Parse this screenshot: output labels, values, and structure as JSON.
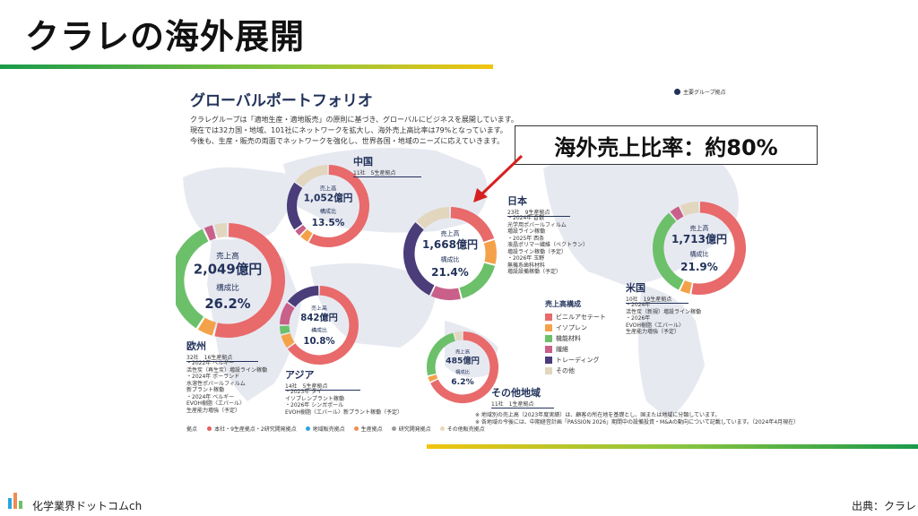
{
  "slide": {
    "title": "クラレの海外展開",
    "callout": "海外売上比率：約80%",
    "footer_brand": "化学業界ドットコムch",
    "footer_source": "出典：クラレ"
  },
  "panel": {
    "title": "グローバルポートフォリオ",
    "intro": [
      "クラレグループは「適地生産・適地販売」の原則に基づき、グローバルにビジネスを展開しています。",
      "現在では32カ国・地域、101社にネットワークを拡大し、海外売上高比率は79%となっています。",
      "今後も、生産・販売の両面でネットワークを強化し、世界各国・地域のニーズに応えていきます。"
    ],
    "hq_legend": "主要グループ拠点",
    "legend_title": "売上高構成",
    "key_prefix": "拠点",
    "key_items": [
      {
        "label": "本社・9生産拠点・2研究開発拠点",
        "color": "#e06060"
      },
      {
        "label": "地域販売拠点",
        "color": "#2aa6e0"
      },
      {
        "label": "生産拠点",
        "color": "#f08c50"
      },
      {
        "label": "研究開発拠点",
        "color": "#9a9a9a"
      },
      {
        "label": "その他販売拠点",
        "color": "#e8d8b8"
      }
    ],
    "footnotes": [
      "※ 地域別の売上高（2023年度実績）は、顧客の所在地を基礎とし、国または地域に分類しています。",
      "※ 各地域の今後には、中期経営計画「PASSION 2026」期間中の設備投資・M&Aの動向について記載しています。（2024年4月現在）"
    ]
  },
  "regions": {
    "china": {
      "name": "中国",
      "sub": "11社　5生産拠点",
      "label_sales": "売上高",
      "value_text": "1,052億円",
      "label_ratio": "構成比",
      "ratio_text": "13.5%"
    },
    "japan": {
      "name": "日本",
      "sub": "23社　9生産拠点",
      "label_sales": "売上高",
      "value_text": "1,668億円",
      "label_ratio": "構成比",
      "ratio_text": "21.4%",
      "notes": [
        "・2024年 倉敷",
        "光学用ポバールフィルム",
        "増設ライン稼働",
        "・2025年 西条",
        "液晶ポリマー繊維（ベクトラン）",
        "増設ライン稼働（予定）",
        "・2026年 玉野",
        "無機系歯科材料",
        "増設設備稼働（予定）"
      ]
    },
    "europe": {
      "name": "欧州",
      "sub": "32社　16生産拠点",
      "label_sales": "売上高",
      "value_text": "2,049億円",
      "label_ratio": "構成比",
      "ratio_text": "26.2%",
      "notes": [
        "・2022年 ベルギー",
        "活性炭（再生炭）増設ライン稼働",
        "・2024年 ポーランド",
        "水溶性ポバールフィルム",
        "新プラント稼働",
        "・2024年 ベルギー",
        "EVOH樹脂〈エバール〉",
        "生産能力増強（予定）"
      ]
    },
    "asia": {
      "name": "アジア",
      "sub": "14社　5生産拠点",
      "label_sales": "売上高",
      "value_text": "842億円",
      "label_ratio": "構成比",
      "ratio_text": "10.8%",
      "notes": [
        "・2023年 タイ",
        "イソプレンプラント稼働",
        "・2026年 シンガポール",
        "EVOH樹脂〈エバール〉新プラント稼働（予定）"
      ]
    },
    "usa": {
      "name": "米国",
      "sub": "10社　19生産拠点",
      "label_sales": "売上高",
      "value_text": "1,713億円",
      "label_ratio": "構成比",
      "ratio_text": "21.9%",
      "notes": [
        "・2024年",
        "活性炭（新規）増設ライン稼働",
        "・2026年",
        "EVOH樹脂〈エバール〉",
        "生産能力増強（予定）"
      ]
    },
    "other": {
      "name": "その他地域",
      "sub": "11社　1生産拠点",
      "label_sales": "売上高",
      "value_text": "485億円",
      "label_ratio": "構成比",
      "ratio_text": "6.2%"
    }
  },
  "chart_data": {
    "type": "pie",
    "style": "donut",
    "composition_categories": [
      "ビニルアセテート",
      "イソプレン",
      "機能材料",
      "繊維",
      "トレーディング",
      "その他"
    ],
    "colors": [
      "#e86a6a",
      "#f4a24a",
      "#6cc06a",
      "#c9608a",
      "#4a3d7a",
      "#e2d6be"
    ],
    "units": "億円",
    "charts": [
      {
        "id": "china",
        "sales": 1052,
        "ratio_pct": 13.5,
        "composition": [
          58,
          4,
          0,
          3,
          20,
          15
        ]
      },
      {
        "id": "japan",
        "sales": 1668,
        "ratio_pct": 21.4,
        "composition": [
          20,
          9,
          17,
          11,
          30,
          13
        ]
      },
      {
        "id": "europe",
        "sales": 2049,
        "ratio_pct": 26.2,
        "composition": [
          54,
          5,
          34,
          3,
          0,
          4
        ]
      },
      {
        "id": "asia",
        "sales": 842,
        "ratio_pct": 10.8,
        "composition": [
          65,
          6,
          4,
          10,
          15,
          0
        ]
      },
      {
        "id": "usa",
        "sales": 1713,
        "ratio_pct": 21.9,
        "composition": [
          53,
          4,
          32,
          4,
          0,
          7
        ]
      },
      {
        "id": "other",
        "sales": 485,
        "ratio_pct": 6.2,
        "composition": [
          68,
          3,
          25,
          0,
          0,
          4
        ]
      }
    ]
  }
}
